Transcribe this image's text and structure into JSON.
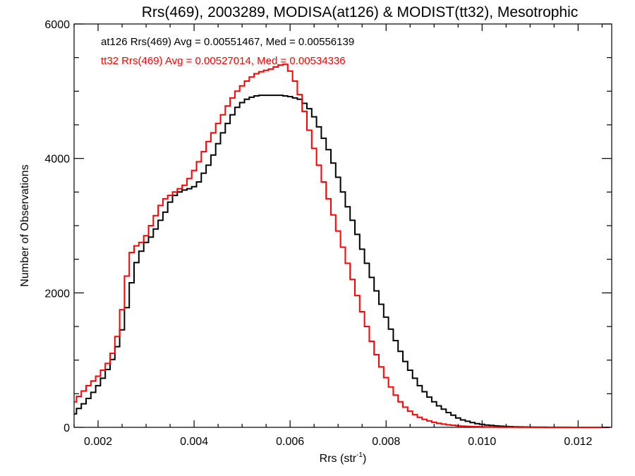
{
  "chart_data": {
    "type": "line",
    "step": true,
    "title": "Rrs(469), 2003289, MODISA(at126) & MODIST(tt32), Mesotrophic",
    "xlabel": "Rrs (str",
    "xlabel_sup": "-1",
    "xlabel_close": ")",
    "ylabel": "Number of Observations",
    "xlim": [
      0.0015,
      0.0127
    ],
    "ylim": [
      0,
      6000
    ],
    "x_ticks": [
      {
        "value": 0.002,
        "label": "0.002"
      },
      {
        "value": 0.004,
        "label": "0.004"
      },
      {
        "value": 0.006,
        "label": "0.006"
      },
      {
        "value": 0.008,
        "label": "0.008"
      },
      {
        "value": 0.01,
        "label": "0.010"
      },
      {
        "value": 0.012,
        "label": "0.012"
      }
    ],
    "y_ticks": [
      {
        "value": 0,
        "label": "0"
      },
      {
        "value": 2000,
        "label": "2000"
      },
      {
        "value": 4000,
        "label": "4000"
      },
      {
        "value": 6000,
        "label": "6000"
      }
    ],
    "grid": false,
    "legend": [
      {
        "text": "at126 Rrs(469) Avg = 0.00551467, Med = 0.00556139",
        "color": "#000000"
      },
      {
        "text": "tt32 Rrs(469) Avg = 0.00527014, Med = 0.00534336",
        "color": "#ff0000"
      }
    ],
    "series": [
      {
        "color": "#000000",
        "x": [
          0.0015,
          0.0016,
          0.0017,
          0.0018,
          0.0019,
          0.002,
          0.0021,
          0.0022,
          0.0023,
          0.0024,
          0.0025,
          0.0026,
          0.0027,
          0.0028,
          0.0029,
          0.003,
          0.0031,
          0.0032,
          0.0033,
          0.0034,
          0.0035,
          0.0036,
          0.0037,
          0.0038,
          0.0039,
          0.004,
          0.0041,
          0.0042,
          0.0043,
          0.0044,
          0.0045,
          0.0046,
          0.0047,
          0.0048,
          0.0049,
          0.005,
          0.0051,
          0.0052,
          0.0053,
          0.0054,
          0.0055,
          0.0056,
          0.0057,
          0.0058,
          0.0059,
          0.006,
          0.0061,
          0.0062,
          0.0063,
          0.0064,
          0.0065,
          0.0066,
          0.0067,
          0.0068,
          0.0069,
          0.007,
          0.0071,
          0.0072,
          0.0073,
          0.0074,
          0.0075,
          0.0076,
          0.0077,
          0.0078,
          0.0079,
          0.008,
          0.0081,
          0.0082,
          0.0083,
          0.0084,
          0.0085,
          0.0086,
          0.0087,
          0.0088,
          0.0089,
          0.009,
          0.0091,
          0.0092,
          0.0093,
          0.0094,
          0.0095,
          0.0096,
          0.0097,
          0.0098,
          0.0099,
          0.01,
          0.0101,
          0.0102,
          0.0103,
          0.0104,
          0.0105,
          0.0106,
          0.0107,
          0.0108,
          0.0109,
          0.011,
          0.0111,
          0.0112,
          0.0113,
          0.0114,
          0.0115,
          0.0116,
          0.0117,
          0.0118,
          0.0119,
          0.012,
          0.0121,
          0.0122,
          0.0123,
          0.0124,
          0.0125,
          0.0126
        ],
        "values": [
          200,
          280,
          350,
          430,
          520,
          620,
          730,
          860,
          1010,
          1200,
          1450,
          1780,
          2150,
          2450,
          2620,
          2750,
          2830,
          2950,
          3080,
          3200,
          3350,
          3450,
          3500,
          3530,
          3550,
          3580,
          3650,
          3780,
          3900,
          4050,
          4220,
          4380,
          4520,
          4650,
          4760,
          4830,
          4880,
          4910,
          4930,
          4940,
          4940,
          4940,
          4940,
          4940,
          4930,
          4920,
          4900,
          4880,
          4820,
          4740,
          4620,
          4470,
          4300,
          4130,
          3930,
          3720,
          3500,
          3280,
          3080,
          2870,
          2650,
          2440,
          2230,
          2030,
          1830,
          1640,
          1460,
          1290,
          1130,
          980,
          850,
          730,
          620,
          530,
          450,
          380,
          320,
          270,
          220,
          180,
          140,
          110,
          90,
          70,
          55,
          45,
          35,
          28,
          22,
          17,
          13,
          10,
          8,
          6,
          5,
          4,
          3,
          2,
          2,
          1,
          1,
          1,
          1,
          1,
          0,
          0,
          0,
          0,
          0,
          0,
          0,
          0
        ]
      },
      {
        "color": "#ff0000",
        "x": [
          0.0015,
          0.0016,
          0.0017,
          0.0018,
          0.0019,
          0.002,
          0.0021,
          0.0022,
          0.0023,
          0.0024,
          0.0025,
          0.0026,
          0.0027,
          0.0028,
          0.0029,
          0.003,
          0.0031,
          0.0032,
          0.0033,
          0.0034,
          0.0035,
          0.0036,
          0.0037,
          0.0038,
          0.0039,
          0.004,
          0.0041,
          0.0042,
          0.0043,
          0.0044,
          0.0045,
          0.0046,
          0.0047,
          0.0048,
          0.0049,
          0.005,
          0.0051,
          0.0052,
          0.0053,
          0.0054,
          0.0055,
          0.0056,
          0.0057,
          0.0058,
          0.0059,
          0.006,
          0.0061,
          0.0062,
          0.0063,
          0.0064,
          0.0065,
          0.0066,
          0.0067,
          0.0068,
          0.0069,
          0.007,
          0.0071,
          0.0072,
          0.0073,
          0.0074,
          0.0075,
          0.0076,
          0.0077,
          0.0078,
          0.0079,
          0.008,
          0.0081,
          0.0082,
          0.0083,
          0.0084,
          0.0085,
          0.0086,
          0.0087,
          0.0088,
          0.0089,
          0.009,
          0.0091,
          0.0092,
          0.0093,
          0.0094,
          0.0095,
          0.0096,
          0.0097,
          0.0098,
          0.0099,
          0.01,
          0.0101,
          0.0102,
          0.0103,
          0.0104,
          0.0105,
          0.0106,
          0.0107,
          0.0108,
          0.0109,
          0.011,
          0.0111,
          0.0112,
          0.0113,
          0.0114,
          0.0115,
          0.0116,
          0.0117,
          0.0118,
          0.0119,
          0.012,
          0.0121,
          0.0122,
          0.0123,
          0.0124,
          0.0125,
          0.0126
        ],
        "values": [
          380,
          460,
          540,
          620,
          690,
          760,
          850,
          950,
          1100,
          1350,
          1750,
          2250,
          2600,
          2700,
          2750,
          2850,
          3000,
          3150,
          3300,
          3400,
          3450,
          3500,
          3550,
          3600,
          3700,
          3820,
          3950,
          4100,
          4250,
          4380,
          4520,
          4650,
          4780,
          4900,
          5000,
          5080,
          5150,
          5210,
          5260,
          5290,
          5310,
          5330,
          5360,
          5390,
          5400,
          5300,
          5150,
          4950,
          4700,
          4420,
          4150,
          3900,
          3650,
          3400,
          3160,
          2920,
          2680,
          2440,
          2200,
          1960,
          1720,
          1500,
          1280,
          1080,
          900,
          740,
          600,
          480,
          380,
          300,
          240,
          190,
          150,
          120,
          95,
          75,
          60,
          48,
          38,
          30,
          24,
          19,
          15,
          12,
          10,
          8,
          6,
          5,
          4,
          3,
          3,
          2,
          2,
          1,
          1,
          1,
          1,
          1,
          0,
          0,
          0,
          0,
          0,
          0,
          0,
          0,
          0,
          0,
          0,
          0,
          0,
          0
        ]
      }
    ]
  }
}
